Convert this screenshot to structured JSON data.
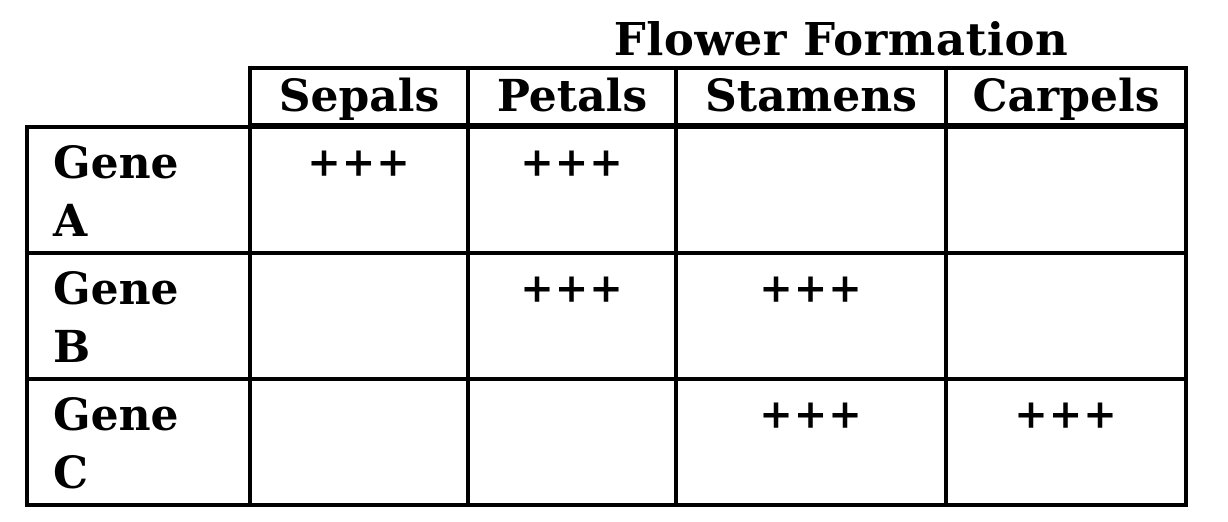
{
  "title": "Flower Formation",
  "columns": [
    "Sepals",
    "Petals",
    "Stamens",
    "Carpels"
  ],
  "rows": [
    {
      "gene": "Gene",
      "letter": "A",
      "cells": [
        "+++",
        "+++",
        "",
        ""
      ]
    },
    {
      "gene": "Gene",
      "letter": "B",
      "cells": [
        "",
        "+++",
        "+++",
        ""
      ]
    },
    {
      "gene": "Gene",
      "letter": "C",
      "cells": [
        "",
        "",
        "+++",
        "+++"
      ]
    }
  ]
}
